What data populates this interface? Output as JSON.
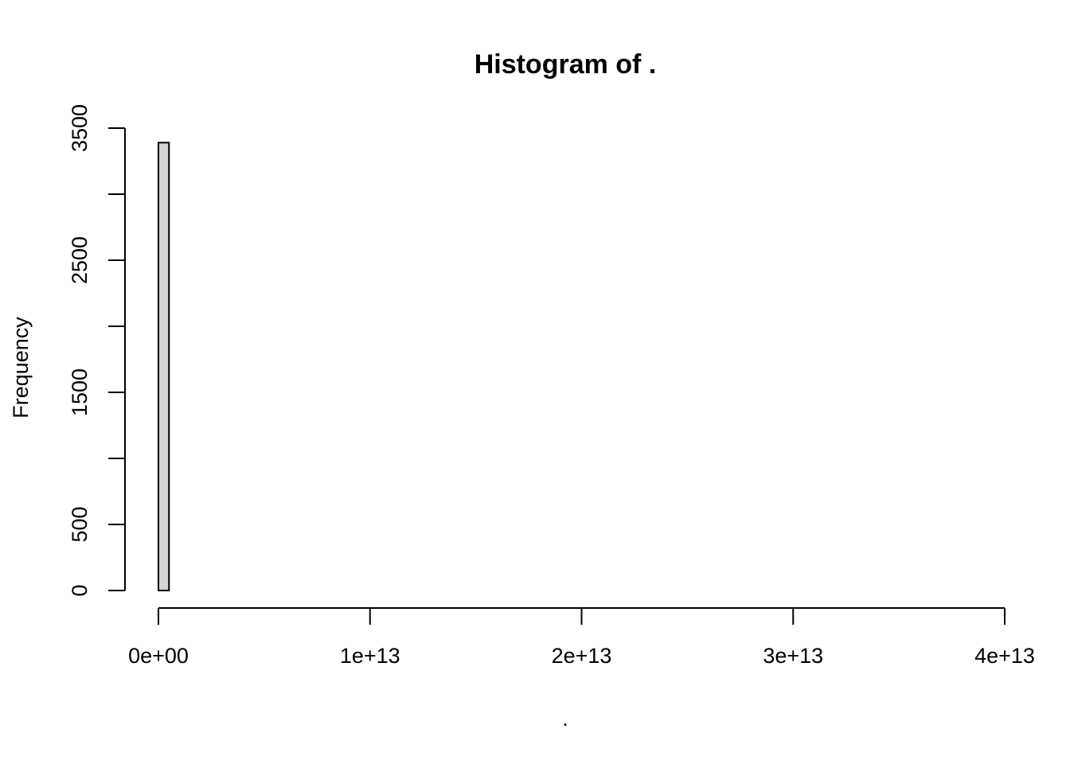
{
  "chart_data": {
    "type": "bar",
    "title": "Histogram of .",
    "xlabel": ".",
    "ylabel": "Frequency",
    "xlim": [
      0,
      40000000000000
    ],
    "ylim": [
      0,
      3500
    ],
    "x_ticks": [
      0,
      10000000000000,
      20000000000000,
      30000000000000,
      40000000000000
    ],
    "x_tick_labels": [
      "0e+00",
      "1e+13",
      "2e+13",
      "3e+13",
      "4e+13"
    ],
    "y_ticks": [
      0,
      500,
      1000,
      1500,
      2000,
      2500,
      3000,
      3500
    ],
    "y_tick_labels": [
      "0",
      "500",
      "",
      "1500",
      "",
      "2500",
      "",
      "3500"
    ],
    "bin_start": 0,
    "bin_width": 500000000000,
    "bin_end": 38500000000000,
    "nonzero_bins": [
      {
        "bin_index": 0,
        "count": 3390
      }
    ],
    "bar_color": "#d3d3d3",
    "grid": false,
    "legend": "none"
  }
}
